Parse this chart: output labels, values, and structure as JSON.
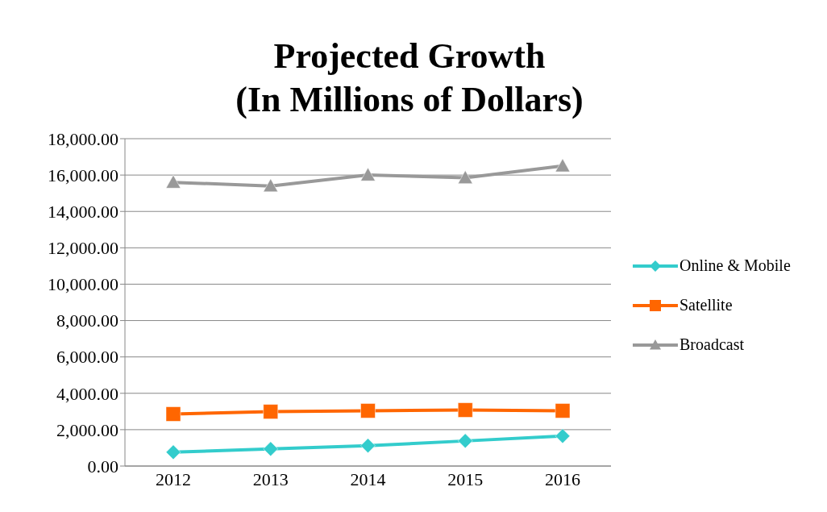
{
  "chart_data": {
    "type": "line",
    "title": "Projected Growth\n(In Millions of Dollars)",
    "categories": [
      "2012",
      "2013",
      "2014",
      "2015",
      "2016"
    ],
    "series": [
      {
        "name": "Online & Mobile",
        "color": "#33cccc",
        "marker": "diamond",
        "values": [
          760,
          940,
          1120,
          1380,
          1650
        ]
      },
      {
        "name": "Satellite",
        "color": "#ff6600",
        "marker": "square",
        "values": [
          2860,
          2990,
          3040,
          3080,
          3040
        ]
      },
      {
        "name": "Broadcast",
        "color": "#999999",
        "marker": "triangle",
        "values": [
          15600,
          15400,
          16000,
          15850,
          16500
        ]
      }
    ],
    "ylim": [
      0,
      18000
    ],
    "yticks": [
      {
        "value": 0,
        "label": "0.00"
      },
      {
        "value": 2000,
        "label": "2,000.00"
      },
      {
        "value": 4000,
        "label": "4,000.00"
      },
      {
        "value": 6000,
        "label": "6,000.00"
      },
      {
        "value": 8000,
        "label": "8,000.00"
      },
      {
        "value": 10000,
        "label": "10,000.00"
      },
      {
        "value": 12000,
        "label": "12,000.00"
      },
      {
        "value": 14000,
        "label": "14,000.00"
      },
      {
        "value": 16000,
        "label": "16,000.00"
      },
      {
        "value": 18000,
        "label": "18,000.00"
      }
    ],
    "grid": "y",
    "legend": "right",
    "line_style": "solid"
  }
}
